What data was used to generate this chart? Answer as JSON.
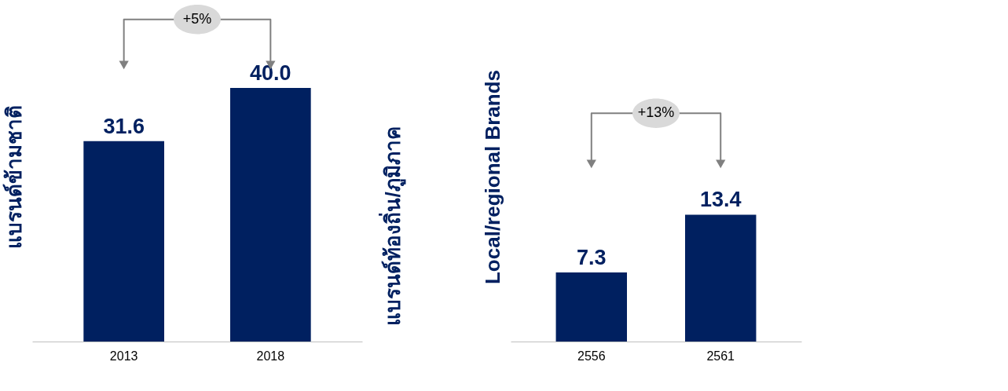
{
  "chart_data": [
    {
      "type": "bar",
      "ylabel": "แบรนด์ข้ามชาติ",
      "y2label": "แบรนด์ท้องถิ่น/ภูมิภาค",
      "categories": [
        "2013",
        "2018"
      ],
      "values": [
        31.6,
        40.0
      ],
      "value_labels": [
        "31.6",
        "40.0"
      ],
      "color": "#002060",
      "annotations": [
        "+5%"
      ]
    },
    {
      "type": "bar",
      "ylabel": "Local/regional Brands",
      "categories": [
        "2556",
        "2561"
      ],
      "values": [
        7.3,
        13.4
      ],
      "value_labels": [
        "7.3",
        "13.4"
      ],
      "color": "#002060",
      "annotations": [
        "+13%"
      ]
    }
  ]
}
